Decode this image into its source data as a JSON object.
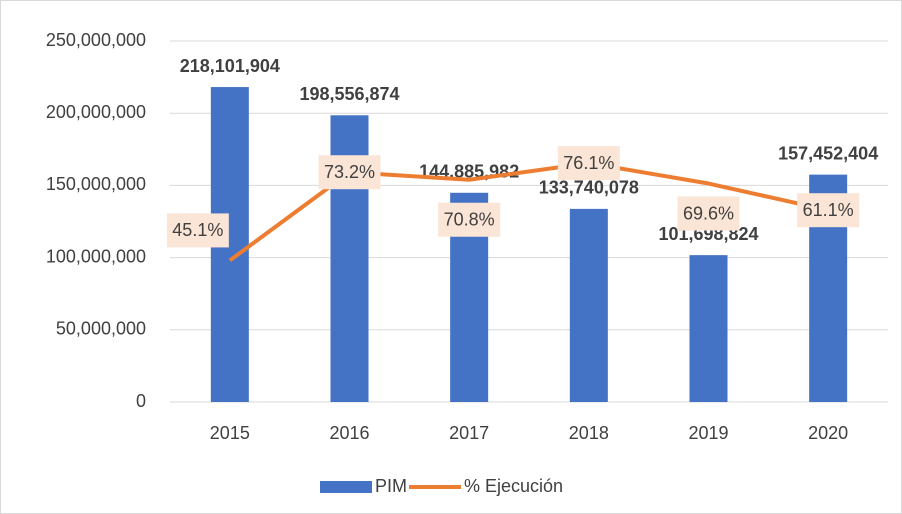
{
  "chart_data": {
    "type": "bar_line",
    "categories": [
      "2015",
      "2016",
      "2017",
      "2018",
      "2019",
      "2020"
    ],
    "series": [
      {
        "name": "PIM",
        "color": "#4472c4",
        "type": "bar",
        "values": [
          218101904,
          198556874,
          144885982,
          133740078,
          101698824,
          157452404
        ],
        "value_labels": [
          "218,101,904",
          "198,556,874",
          "144,885,982",
          "133,740,078",
          "101,698,824",
          "157,452,404"
        ]
      },
      {
        "name": "% Ejecución",
        "color": "#ed7d31",
        "type": "line",
        "axis": "y2",
        "values": [
          45.1,
          73.2,
          70.8,
          76.1,
          69.6,
          61.1
        ],
        "value_labels": [
          "45.1%",
          "73.2%",
          "70.8%",
          "76.1%",
          "69.6%",
          "61.1%"
        ]
      }
    ],
    "ylim": [
      0,
      250000000
    ],
    "yticks": [
      0,
      {
        "value": 50000000,
        "label": "50,000,000"
      },
      {
        "value": 100000000,
        "label": "100,000,000"
      },
      {
        "value": 150000000,
        "label": "150,000,000"
      },
      {
        "value": 200000000,
        "label": "200,000,000"
      },
      {
        "value": 250000000,
        "label": "250,000,000"
      }
    ],
    "y2lim": [
      0,
      115
    ],
    "grid": true,
    "legend": "bottom"
  }
}
